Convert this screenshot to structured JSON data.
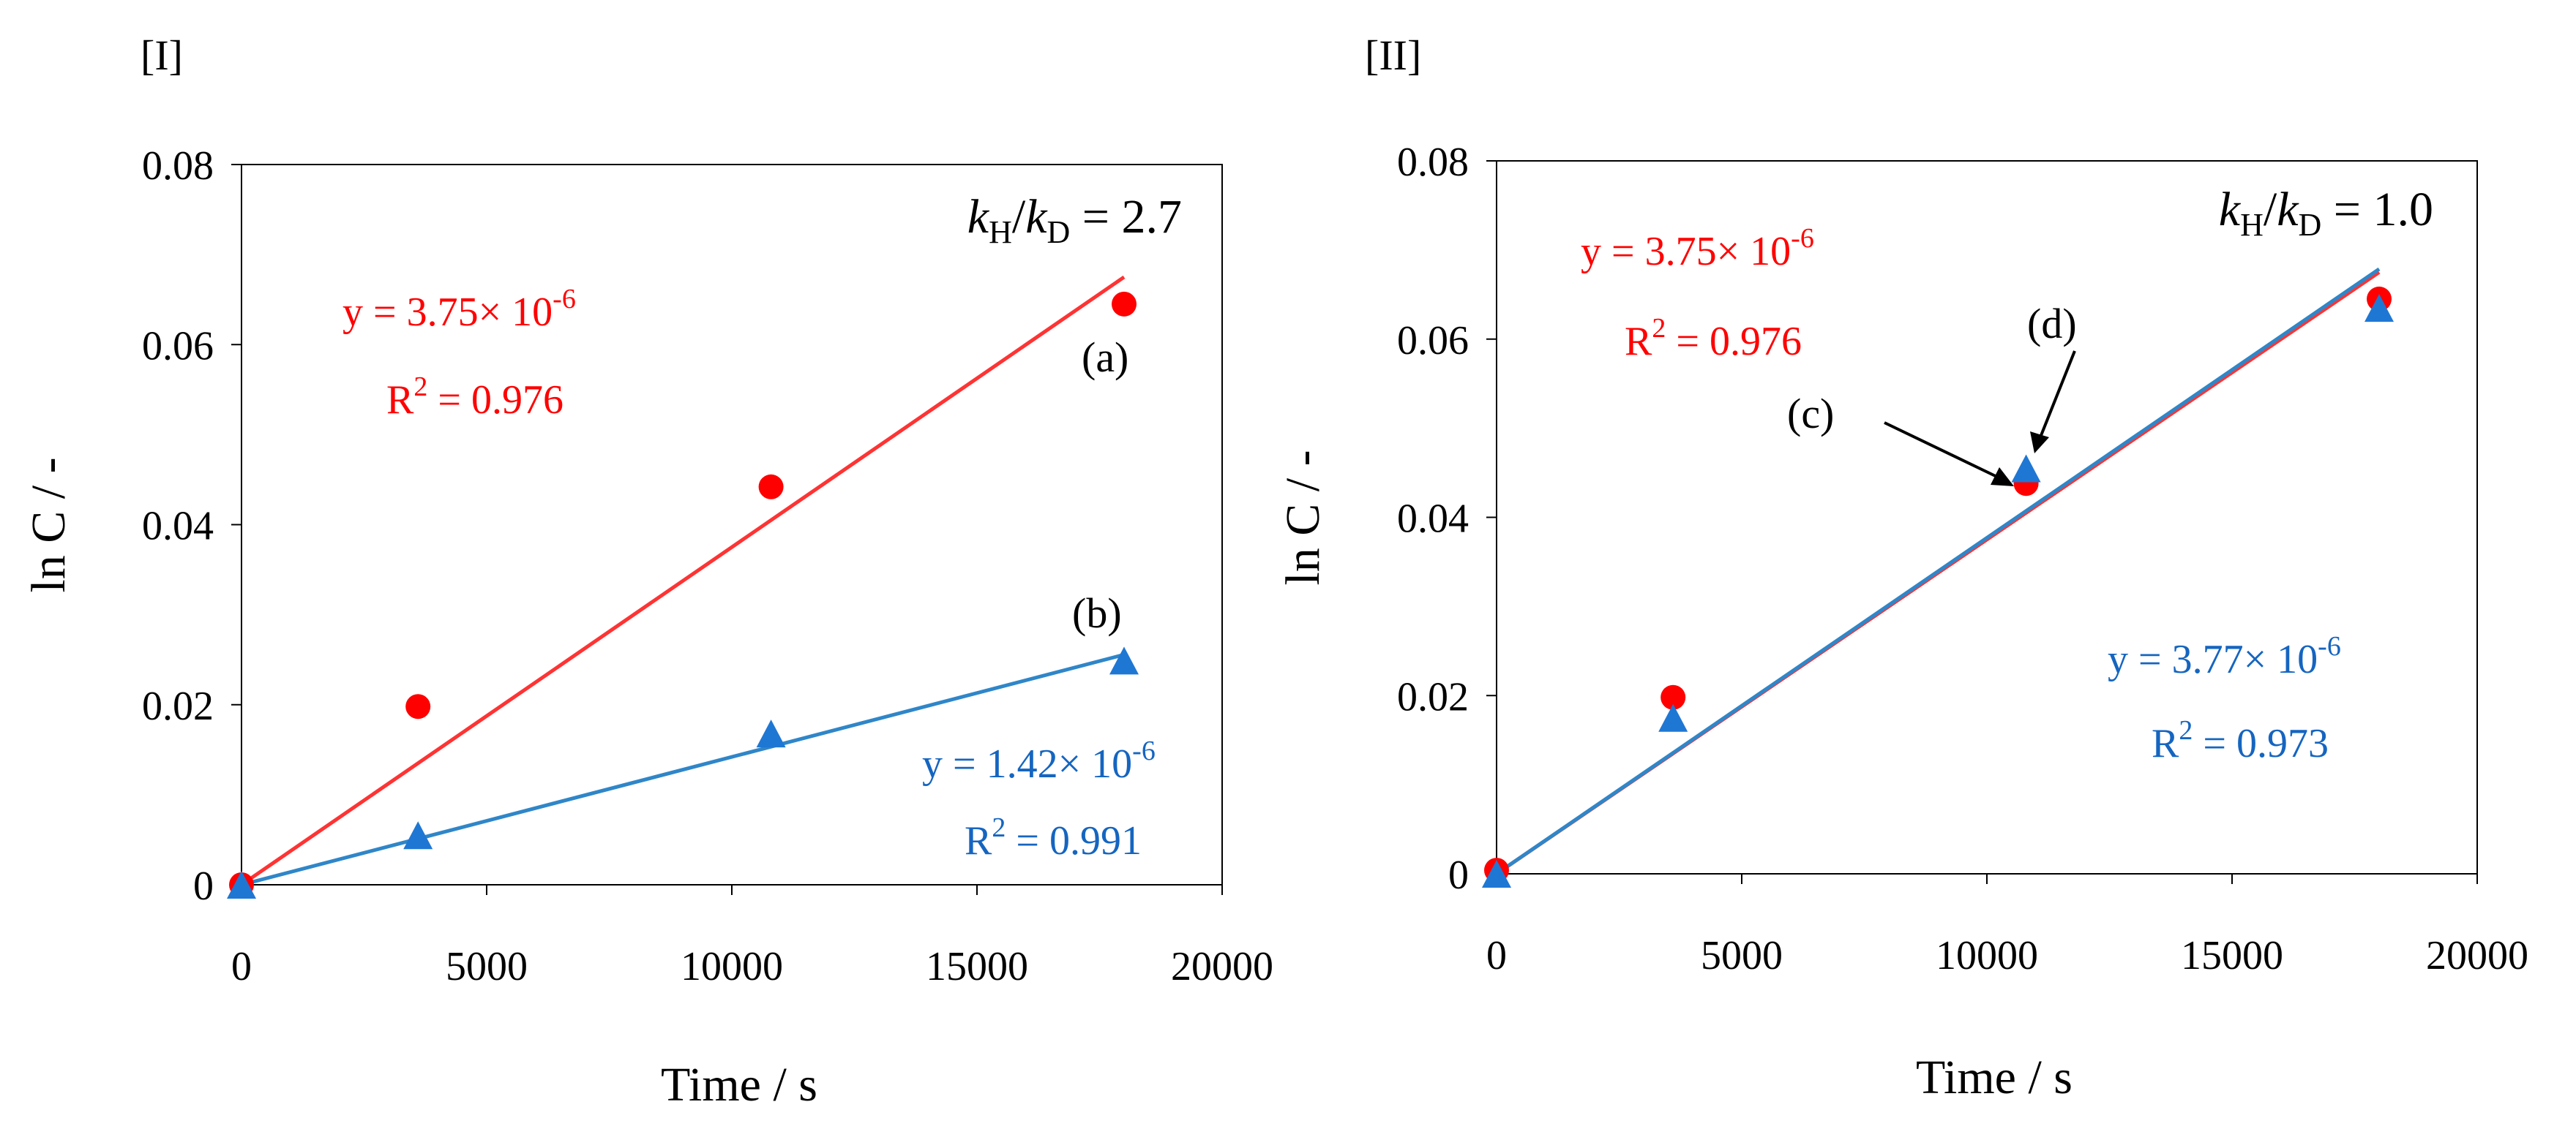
{
  "chart_data": [
    {
      "panel_label": "[I]",
      "type": "scatter",
      "xlabel": "Time / s",
      "ylabel": "ln C  / -",
      "xlim": [
        0,
        20000
      ],
      "ylim": [
        0,
        0.08
      ],
      "x_ticks": [
        0,
        5000,
        10000,
        15000,
        20000
      ],
      "y_ticks": [
        0,
        0.02,
        0.04,
        0.06,
        0.08
      ],
      "x_tick_labels": [
        "0",
        "5000",
        "10000",
        "15000",
        "20000"
      ],
      "y_tick_labels": [
        "0",
        "0.02",
        "0.04",
        "0.06",
        "0.08"
      ],
      "ratio": {
        "prefix": "k",
        "sub1": "H",
        "slash": "/",
        "prefix2": "k",
        "sub2": "D",
        "value": " = 2.7"
      },
      "series": [
        {
          "name": "(a)",
          "color": "#ff0000",
          "line_color": "#ff3333",
          "marker": "circle",
          "x": [
            0,
            3600,
            10800,
            18000
          ],
          "y": [
            0.0,
            0.0198,
            0.0442,
            0.0645
          ],
          "fit_slope": 3.75e-06,
          "fit_x_end": 18000,
          "equation": {
            "text": "y = 3.75×  10",
            "exp": "-6"
          },
          "r2": {
            "text": "R",
            "exp": "2",
            "value": " = 0.976"
          }
        },
        {
          "name": "(b)",
          "color": "#1f77d4",
          "line_color": "#2f86c8",
          "marker": "triangle",
          "x": [
            0,
            3600,
            10800,
            18000
          ],
          "y": [
            0.0,
            0.0055,
            0.0168,
            0.0249
          ],
          "fit_slope": 1.42e-06,
          "fit_x_end": 18000,
          "equation": {
            "text": "y = 1.42×  10",
            "exp": "-6"
          },
          "r2": {
            "text": "R",
            "exp": "2",
            "value": " = 0.991"
          }
        }
      ]
    },
    {
      "panel_label": "[II]",
      "type": "scatter",
      "xlabel": "Time / s",
      "ylabel": "ln C  / -",
      "xlim": [
        0,
        20000
      ],
      "ylim": [
        0,
        0.08
      ],
      "x_ticks": [
        0,
        5000,
        10000,
        15000,
        20000
      ],
      "y_ticks": [
        0,
        0.02,
        0.04,
        0.06,
        0.08
      ],
      "x_tick_labels": [
        "0",
        "5000",
        "10000",
        "15000",
        "20000"
      ],
      "y_tick_labels": [
        "0",
        "0.02",
        "0.04",
        "0.06",
        "0.08"
      ],
      "ratio": {
        "prefix": "k",
        "sub1": "H",
        "slash": "/",
        "prefix2": "k",
        "sub2": "D",
        "value": " = 1.0"
      },
      "series": [
        {
          "name": "(c)",
          "color": "#ff0000",
          "line_color": "#ff3333",
          "marker": "circle",
          "x": [
            0,
            3600,
            10800,
            18000
          ],
          "y": [
            0.0004,
            0.0198,
            0.0438,
            0.0645
          ],
          "fit_slope": 3.75e-06,
          "fit_x_end": 18000,
          "equation": {
            "text": "y = 3.75×  10",
            "exp": "-6"
          },
          "r2": {
            "text": "R",
            "exp": "2",
            "value": " = 0.976"
          }
        },
        {
          "name": "(d)",
          "color": "#1f77d4",
          "line_color": "#2f86c8",
          "marker": "triangle",
          "x": [
            0,
            3600,
            10800,
            18000
          ],
          "y": [
            0.0,
            0.0175,
            0.0455,
            0.0635
          ],
          "fit_slope": 3.77e-06,
          "fit_x_end": 18000,
          "equation": {
            "text": "y = 3.77×  10",
            "exp": "-6"
          },
          "r2": {
            "text": "R",
            "exp": "2",
            "value": " = 0.973"
          }
        }
      ]
    }
  ]
}
